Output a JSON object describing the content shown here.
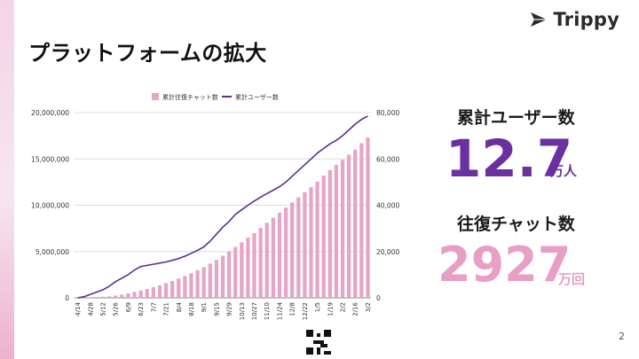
{
  "logo": {
    "text": "Trippy"
  },
  "slide": {
    "title": "プラットフォームの拡大",
    "page_number": "2"
  },
  "stats": {
    "users": {
      "label": "累計ユーザー数",
      "value": "12.7",
      "unit": "万人"
    },
    "chats": {
      "label": "往復チャット数",
      "value": "2927",
      "unit": "万回"
    }
  },
  "colors": {
    "bar": "#e4a5c6",
    "line": "#5c2e91",
    "users_value": "#6a2fa0",
    "chats_value": "#e79fc5"
  },
  "chart_data": {
    "type": "bar+line",
    "legend": {
      "placement": "top",
      "entries": [
        "累計往復チャット数",
        "累計ユーザー数"
      ]
    },
    "categories": [
      "4/14",
      "4/21",
      "4/28",
      "5/5",
      "5/12",
      "5/19",
      "5/26",
      "6/2",
      "6/9",
      "6/16",
      "6/23",
      "6/30",
      "7/7",
      "7/14",
      "7/21",
      "7/28",
      "8/4",
      "8/11",
      "8/18",
      "8/25",
      "9/1",
      "9/8",
      "9/15",
      "9/22",
      "9/29",
      "10/6",
      "10/13",
      "10/20",
      "10/27",
      "11/3",
      "11/10",
      "11/17",
      "11/24",
      "12/1",
      "12/8",
      "12/15",
      "12/22",
      "12/29",
      "1/5",
      "1/12",
      "1/19",
      "1/26",
      "2/2",
      "2/9",
      "2/16",
      "2/23",
      "3/2"
    ],
    "x_tick_labels": [
      "4/14",
      "4/28",
      "5/12",
      "5/26",
      "6/9",
      "6/23",
      "7/7",
      "7/21",
      "8/4",
      "8/18",
      "9/1",
      "9/15",
      "9/29",
      "10/13",
      "10/27",
      "11/10",
      "11/24",
      "12/8",
      "12/22",
      "1/5",
      "1/19",
      "2/2",
      "2/16",
      "3/2"
    ],
    "series": [
      {
        "name": "累計往復チャット数",
        "kind": "bar",
        "axis": "left",
        "values": [
          0,
          0,
          50000,
          80000,
          120000,
          160000,
          250000,
          350000,
          480000,
          620000,
          780000,
          950000,
          1150000,
          1350000,
          1580000,
          1820000,
          2080000,
          2350000,
          2650000,
          2980000,
          3320000,
          3700000,
          4100000,
          4550000,
          5000000,
          5500000,
          6000000,
          6500000,
          7000000,
          7550000,
          8100000,
          8650000,
          9200000,
          9750000,
          10300000,
          10850000,
          11400000,
          11950000,
          12550000,
          13200000,
          13800000,
          14350000,
          14900000,
          15450000,
          16000000,
          16700000,
          17300000
        ]
      },
      {
        "name": "累計ユーザー数",
        "kind": "line",
        "axis": "right",
        "values": [
          0,
          500,
          1500,
          2500,
          3500,
          5000,
          7000,
          8500,
          10000,
          12000,
          13500,
          14000,
          14500,
          15000,
          15500,
          16200,
          17000,
          18000,
          19200,
          20500,
          22000,
          24500,
          27500,
          30500,
          33000,
          36000,
          38000,
          40000,
          41800,
          43500,
          45000,
          46500,
          48000,
          50000,
          52500,
          55000,
          57500,
          60000,
          62500,
          64500,
          66500,
          68000,
          70000,
          72500,
          75000,
          77000,
          78500
        ]
      }
    ],
    "y_left": {
      "min": 0,
      "max": 20000000,
      "ticks": [
        "0",
        "5,000,000",
        "10,000,000",
        "15,000,000",
        "20,000,000"
      ],
      "tick_values": [
        0,
        5000000,
        10000000,
        15000000,
        20000000
      ]
    },
    "y_right": {
      "min": 0,
      "max": 80000,
      "ticks": [
        "0",
        "20,000",
        "40,000",
        "60,000",
        "80,000"
      ],
      "tick_values": [
        0,
        20000,
        40000,
        60000,
        80000
      ]
    },
    "grid": true
  }
}
